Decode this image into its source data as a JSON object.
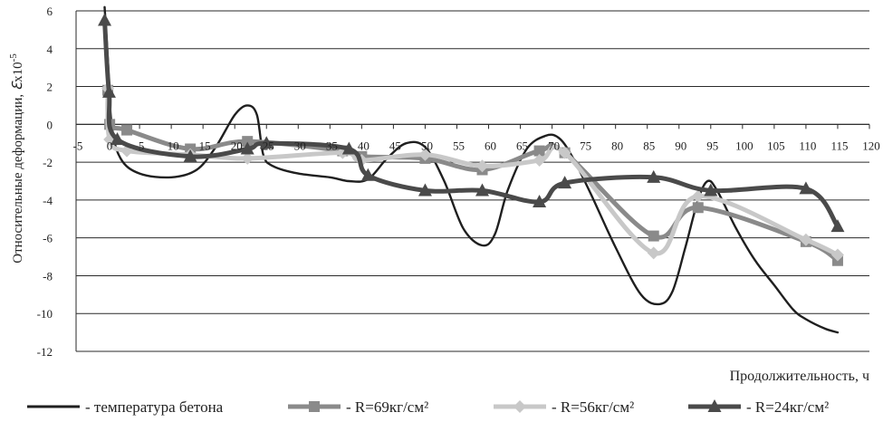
{
  "chart_data": {
    "type": "line",
    "title": "",
    "xlabel": "Продолжительность, ч",
    "ylabel": "Относительные деформации, ",
    "ylabel_symbol": "ℇ",
    "ylabel_unit": "x10",
    "ylabel_exp": "-5",
    "xlim": [
      -5,
      120
    ],
    "ylim": [
      -12,
      6
    ],
    "x_ticks": [
      -5,
      0,
      5,
      10,
      15,
      20,
      25,
      30,
      35,
      40,
      45,
      50,
      55,
      60,
      65,
      70,
      75,
      80,
      85,
      90,
      95,
      100,
      105,
      110,
      115,
      120
    ],
    "x_tick_labels": [
      "-5",
      "0",
      "5",
      "10",
      "15",
      "20",
      "25",
      "30",
      "35",
      "40",
      "45",
      "50",
      "55",
      "60",
      "65",
      "70",
      "75",
      "80",
      "85",
      "90",
      "95",
      "100",
      "105",
      "110",
      "115",
      "120"
    ],
    "y_ticks": [
      6,
      4,
      2,
      0,
      -2,
      -4,
      -6,
      -8,
      -10,
      -12
    ],
    "y_tick_labels": [
      "6",
      "4",
      "2",
      "0",
      "-2",
      "-4",
      "-6",
      "-8",
      "-10",
      "-12"
    ],
    "grid": true,
    "legend_position": "bottom",
    "series": [
      {
        "name": "- температура бетона",
        "marker": "none",
        "color": "#1f1f1f",
        "x": [
          -0.5,
          0,
          0.6,
          2,
          5,
          10,
          14,
          17,
          20,
          22,
          23.5,
          24.5,
          26,
          30,
          35,
          38,
          41,
          44,
          47,
          50,
          53,
          56,
          59,
          61,
          63,
          66,
          69,
          71,
          73,
          76,
          80,
          84,
          87,
          89,
          91,
          93,
          94.5,
          96,
          99,
          102,
          105,
          108,
          110,
          113,
          115
        ],
        "y": [
          6.2,
          3.5,
          0,
          -1.8,
          -2.6,
          -2.8,
          -2.4,
          -1.2,
          0.5,
          1.0,
          0.5,
          -1.6,
          -2.2,
          -2.6,
          -2.8,
          -3.0,
          -2.9,
          -1.8,
          -1.0,
          -1.2,
          -3.0,
          -5.5,
          -6.4,
          -5.8,
          -3.5,
          -1.3,
          -0.6,
          -0.7,
          -1.6,
          -3.6,
          -6.5,
          -9.0,
          -9.5,
          -8.8,
          -6.5,
          -4.0,
          -3.0,
          -3.5,
          -5.5,
          -7.2,
          -8.5,
          -9.8,
          -10.3,
          -10.8,
          -11.0
        ]
      },
      {
        "name": "- R=69кг/см²",
        "marker": "square",
        "color": "#8a8a8a",
        "x": [
          0,
          0.3,
          3,
          13,
          22,
          37,
          40,
          50,
          59,
          68,
          72,
          86,
          93,
          110,
          115
        ],
        "y": [
          1.8,
          0,
          -0.3,
          -1.3,
          -0.9,
          -1.4,
          -1.7,
          -1.8,
          -2.4,
          -1.4,
          -1.5,
          -5.9,
          -4.4,
          -6.2,
          -7.2
        ]
      },
      {
        "name": "- R=56кг/см²",
        "marker": "diamond",
        "color": "#c8c8c8",
        "x": [
          0,
          0.3,
          3,
          13,
          22,
          37,
          40,
          50,
          59,
          68,
          72,
          86,
          93,
          110,
          115
        ],
        "y": [
          1.9,
          -0.8,
          -1.4,
          -1.6,
          -1.8,
          -1.5,
          -1.9,
          -1.6,
          -2.2,
          -1.9,
          -1.5,
          -6.8,
          -3.8,
          -6.1,
          -6.9
        ]
      },
      {
        "name": "- R=24кг/см²",
        "marker": "triangle",
        "color": "#4a4a4a",
        "x": [
          -0.5,
          0.2,
          1.5,
          13,
          22,
          25,
          38,
          41,
          50,
          59,
          68,
          72,
          86,
          95,
          110,
          115
        ],
        "y": [
          5.5,
          1.7,
          -0.8,
          -1.7,
          -1.3,
          -1.0,
          -1.3,
          -2.7,
          -3.5,
          -3.5,
          -4.1,
          -3.1,
          -2.8,
          -3.5,
          -3.4,
          -5.4
        ]
      }
    ]
  }
}
